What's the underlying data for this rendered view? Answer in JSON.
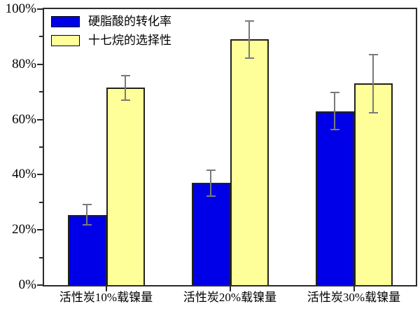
{
  "chart_data": {
    "type": "bar",
    "title": "",
    "xlabel": "",
    "ylabel": "",
    "categories": [
      "活性炭10%载镍量",
      "活性炭20%载镍量",
      "活性炭30%载镍量"
    ],
    "series": [
      {
        "name": "硬脂酸的转化率",
        "color": "#0000e8",
        "values": [
          25.5,
          37,
          63
        ],
        "errors": [
          4,
          5,
          7
        ]
      },
      {
        "name": "十七烷的选择性",
        "color": "#ffff99",
        "values": [
          71.5,
          89,
          73
        ],
        "errors": [
          4.7,
          7,
          10.8
        ]
      }
    ],
    "ylim": [
      0,
      100
    ],
    "ytick_labels": [
      "0%",
      "20%",
      "40%",
      "60%",
      "80%",
      "100%"
    ],
    "ytick_major_step": 20,
    "ytick_minor_step": 10,
    "grid": false,
    "legend_position": "top-left",
    "bar_edge_color": "#222218",
    "error_bar_color": "#7a7a7a",
    "axis_color": "#2b2b2b"
  }
}
